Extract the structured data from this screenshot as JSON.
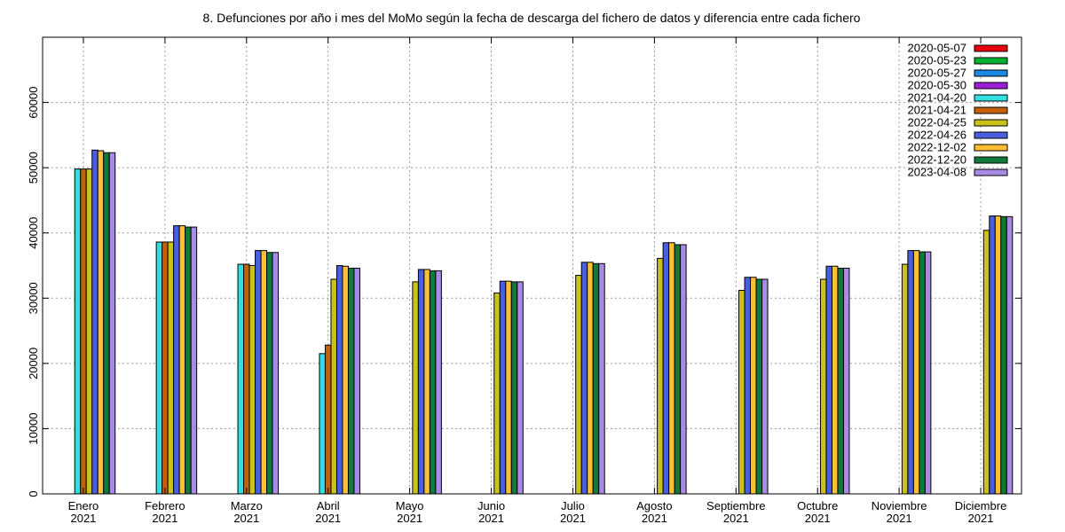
{
  "chart_data": {
    "type": "bar",
    "title": "8. Defunciones por año i mes del MoMo según la fecha de descarga del fichero de datos y diferencia entre cada fichero",
    "xlabel": "",
    "ylabel": "",
    "ylim": [
      0,
      70000
    ],
    "yticks": [
      0,
      10000,
      20000,
      30000,
      40000,
      50000,
      60000
    ],
    "grid": true,
    "legend_position": "top-right",
    "categories": [
      [
        "Enero",
        "2021"
      ],
      [
        "Febrero",
        "2021"
      ],
      [
        "Marzo",
        "2021"
      ],
      [
        "Abril",
        "2021"
      ],
      [
        "Mayo",
        "2021"
      ],
      [
        "Junio",
        "2021"
      ],
      [
        "Julio",
        "2021"
      ],
      [
        "Agosto",
        "2021"
      ],
      [
        "Septiembre",
        "2021"
      ],
      [
        "Octubre",
        "2021"
      ],
      [
        "Noviembre",
        "2021"
      ],
      [
        "Diciembre",
        "2021"
      ]
    ],
    "series": [
      {
        "name": "2020-05-07",
        "color": "#e8000b",
        "values": [
          null,
          null,
          null,
          null,
          null,
          null,
          null,
          null,
          null,
          null,
          null,
          null
        ]
      },
      {
        "name": "2020-05-23",
        "color": "#00b02e",
        "values": [
          null,
          null,
          null,
          null,
          null,
          null,
          null,
          null,
          null,
          null,
          null,
          null
        ]
      },
      {
        "name": "2020-05-27",
        "color": "#1e88e5",
        "values": [
          null,
          null,
          null,
          null,
          null,
          null,
          null,
          null,
          null,
          null,
          null,
          null
        ]
      },
      {
        "name": "2020-05-30",
        "color": "#9b1fd6",
        "values": [
          null,
          null,
          null,
          null,
          null,
          null,
          null,
          null,
          null,
          null,
          null,
          null
        ]
      },
      {
        "name": "2021-04-20",
        "color": "#2ee0e0",
        "values": [
          49800,
          38600,
          35200,
          21500,
          null,
          null,
          null,
          null,
          null,
          null,
          null,
          null
        ]
      },
      {
        "name": "2021-04-21",
        "color": "#c4600a",
        "values": [
          49800,
          38600,
          35200,
          22800,
          null,
          null,
          null,
          null,
          null,
          null,
          null,
          null
        ]
      },
      {
        "name": "2022-04-25",
        "color": "#c9c21d",
        "values": [
          49800,
          38600,
          35000,
          32900,
          32500,
          30800,
          33500,
          36100,
          31200,
          32900,
          35200,
          40400
        ]
      },
      {
        "name": "2022-04-26",
        "color": "#4a5fe0",
        "values": [
          52700,
          41100,
          37300,
          35000,
          34400,
          32600,
          35500,
          38500,
          33200,
          34900,
          37300,
          42600
        ]
      },
      {
        "name": "2022-12-02",
        "color": "#ffbf33",
        "values": [
          52600,
          41100,
          37300,
          34900,
          34400,
          32600,
          35500,
          38500,
          33200,
          34900,
          37300,
          42600
        ]
      },
      {
        "name": "2022-12-20",
        "color": "#0f7a3a",
        "values": [
          52300,
          40900,
          37000,
          34600,
          34200,
          32500,
          35300,
          38200,
          32900,
          34600,
          37100,
          42500
        ]
      },
      {
        "name": "2023-04-08",
        "color": "#a98ae6",
        "values": [
          52300,
          40900,
          37000,
          34600,
          34200,
          32500,
          35300,
          38200,
          32900,
          34600,
          37100,
          42500
        ]
      }
    ]
  }
}
